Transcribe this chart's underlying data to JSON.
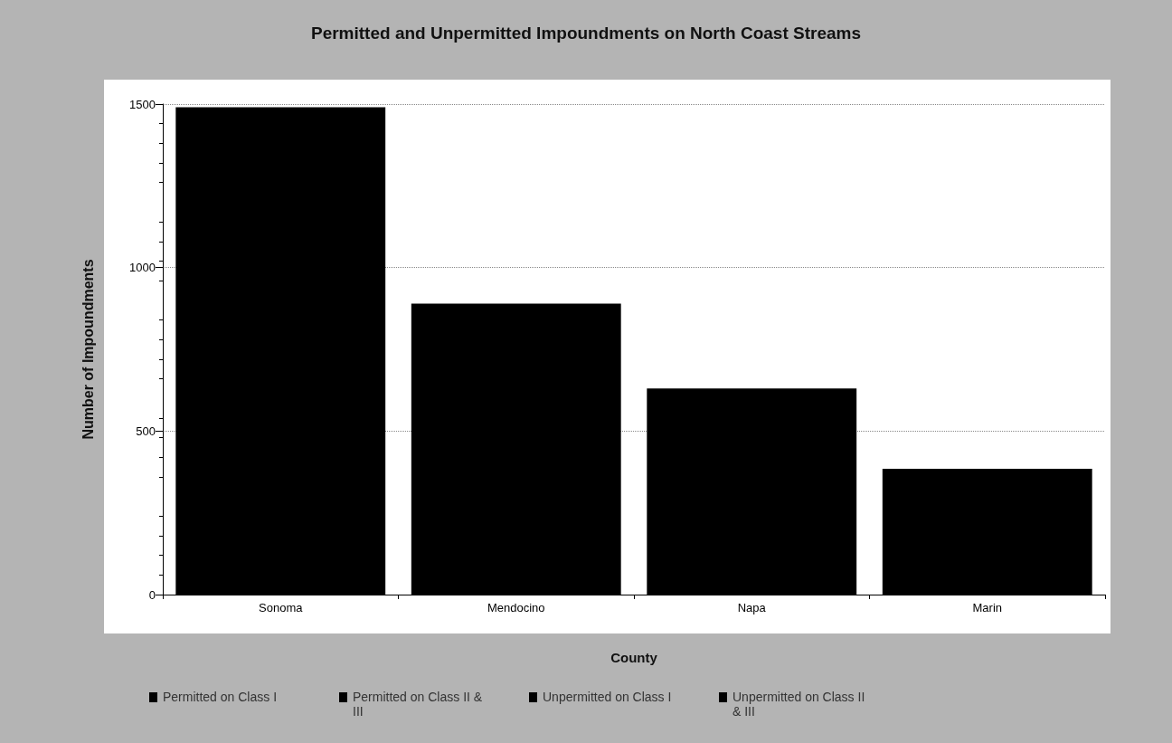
{
  "chart_data": {
    "type": "bar",
    "title": "Permitted and Unpermitted Impoundments on North Coast Streams",
    "xlabel": "County",
    "ylabel": "Number of Impoundments",
    "categories": [
      "Sonoma",
      "Mendocino",
      "Napa",
      "Marin"
    ],
    "values": [
      1490,
      890,
      630,
      385
    ],
    "color": "#000000",
    "ylim": [
      0,
      1500
    ],
    "yticks": [
      0,
      500,
      1000,
      1500
    ],
    "grid": "y",
    "annotations": [
      "Permitted on Class I",
      "Permitted on Class II & III",
      "Unpermitted on Class I",
      "Unpermitted on Class II & III"
    ]
  }
}
